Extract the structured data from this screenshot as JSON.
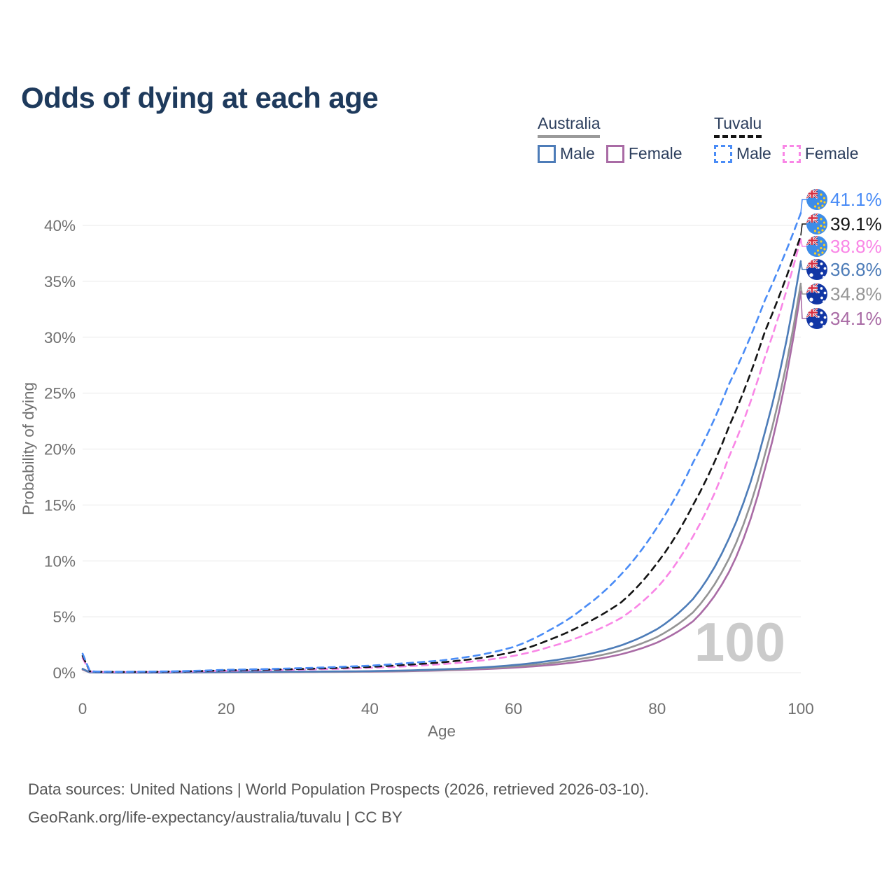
{
  "header": {
    "title": "Odds of dying at each age",
    "title_color": "#1e3a5c"
  },
  "legend": {
    "groups": [
      {
        "label": "Australia",
        "line": {
          "color": "#9a9a9a",
          "style": "solid"
        },
        "items": [
          {
            "label": "Male",
            "color": "#4d7cb8",
            "style": "solid"
          },
          {
            "label": "Female",
            "color": "#a96ba5",
            "style": "solid"
          }
        ]
      },
      {
        "label": "Tuvalu",
        "line": {
          "color": "#141414",
          "style": "dashed"
        },
        "items": [
          {
            "label": "Male",
            "color": "#4a8cf6",
            "style": "dashed"
          },
          {
            "label": "Female",
            "color": "#f986e6",
            "style": "dashed"
          }
        ]
      }
    ]
  },
  "footer": {
    "line1": "Data sources: United Nations | World Population Prospects (2026, retrieved 2026-03-10).",
    "line2": "GeoRank.org/life-expectancy/australia/tuvalu | CC BY"
  },
  "chart_data": {
    "type": "line",
    "title": "Odds of dying at each age",
    "xlabel": "Age",
    "ylabel": "Probability of dying",
    "xlim": [
      0,
      100
    ],
    "ylim_pct": [
      0,
      40
    ],
    "x_ticks": [
      0,
      20,
      40,
      60,
      80,
      100
    ],
    "y_ticks_pct": [
      0,
      5,
      10,
      15,
      20,
      25,
      30,
      35,
      40
    ],
    "grid": "horizontal",
    "legend_position": "top-right",
    "watermark_age": "100",
    "ages": [
      0,
      1,
      2,
      5,
      10,
      15,
      20,
      25,
      30,
      35,
      40,
      45,
      50,
      55,
      60,
      65,
      70,
      75,
      80,
      85,
      90,
      95,
      100
    ],
    "series": [
      {
        "name": "Tuvalu Male",
        "country": "Tuvalu",
        "sex": "Male",
        "color": "#4a8cf6",
        "dashed": true,
        "flag": "tuvalu",
        "end_label": "41.1%",
        "end_value": 41.1,
        "values": [
          1.7,
          0.15,
          0.1,
          0.08,
          0.1,
          0.16,
          0.26,
          0.32,
          0.4,
          0.5,
          0.63,
          0.85,
          1.1,
          1.55,
          2.3,
          3.8,
          5.9,
          8.8,
          13.0,
          18.8,
          25.8,
          33.3,
          41.1
        ]
      },
      {
        "name": "Tuvalu Both sexes",
        "country": "Tuvalu",
        "sex": "Both",
        "color": "#141414",
        "dashed": true,
        "flag": "tuvalu",
        "end_label": "39.1%",
        "end_value": 39.1,
        "values": [
          1.5,
          0.13,
          0.09,
          0.07,
          0.08,
          0.13,
          0.21,
          0.26,
          0.33,
          0.41,
          0.52,
          0.7,
          0.92,
          1.28,
          1.85,
          2.95,
          4.4,
          6.3,
          9.8,
          15.0,
          22.0,
          30.5,
          39.1
        ]
      },
      {
        "name": "Tuvalu Female",
        "country": "Tuvalu",
        "sex": "Female",
        "color": "#f986e6",
        "dashed": true,
        "flag": "tuvalu",
        "end_label": "38.8%",
        "end_value": 38.8,
        "values": [
          1.3,
          0.11,
          0.08,
          0.06,
          0.07,
          0.11,
          0.17,
          0.21,
          0.27,
          0.34,
          0.43,
          0.57,
          0.76,
          1.05,
          1.5,
          2.3,
          3.4,
          4.9,
          7.6,
          12.2,
          19.3,
          28.2,
          38.8
        ]
      },
      {
        "name": "Australia Male",
        "country": "Australia",
        "sex": "Male",
        "color": "#4d7cb8",
        "dashed": false,
        "flag": "australia",
        "end_label": "36.8%",
        "end_value": 36.8,
        "values": [
          0.35,
          0.03,
          0.02,
          0.01,
          0.01,
          0.04,
          0.06,
          0.08,
          0.09,
          0.11,
          0.14,
          0.2,
          0.3,
          0.45,
          0.68,
          1.05,
          1.6,
          2.45,
          3.9,
          6.6,
          12.0,
          21.5,
          36.8
        ]
      },
      {
        "name": "Australia Both sexes",
        "country": "Australia",
        "sex": "Both",
        "color": "#949494",
        "dashed": false,
        "flag": "australia",
        "end_label": "34.8%",
        "end_value": 34.8,
        "values": [
          0.31,
          0.03,
          0.02,
          0.01,
          0.01,
          0.03,
          0.05,
          0.06,
          0.07,
          0.09,
          0.12,
          0.17,
          0.25,
          0.38,
          0.56,
          0.85,
          1.3,
          2.0,
          3.2,
          5.4,
          10.2,
          19.5,
          34.8
        ]
      },
      {
        "name": "Australia Female",
        "country": "Australia",
        "sex": "Female",
        "color": "#a96ba5",
        "dashed": false,
        "flag": "australia",
        "end_label": "34.1%",
        "end_value": 34.1,
        "values": [
          0.27,
          0.02,
          0.01,
          0.01,
          0.01,
          0.02,
          0.03,
          0.04,
          0.05,
          0.07,
          0.09,
          0.13,
          0.2,
          0.3,
          0.45,
          0.68,
          1.05,
          1.65,
          2.7,
          4.6,
          9.0,
          18.2,
          34.1
        ]
      }
    ],
    "flag_colors": {
      "tuvalu_field": "#3d8ce8",
      "australia_field": "#1136a5",
      "union_jack_blue": "#263c87",
      "union_jack_red": "#d62c3e",
      "tuvalu_star": "#ffd01e",
      "australia_star": "#ffffff"
    }
  }
}
